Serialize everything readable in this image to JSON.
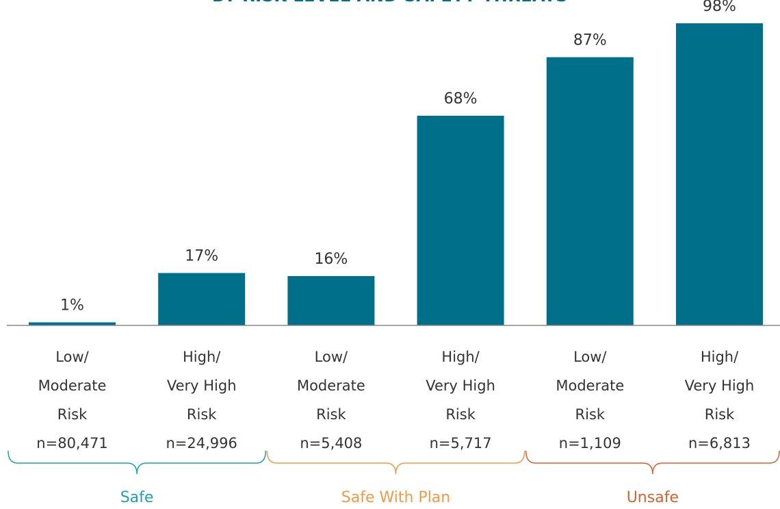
{
  "chart_data": {
    "type": "bar",
    "title": "BY RISK LEVEL AND SAFETY THREATS",
    "ylim": [
      0,
      100
    ],
    "value_suffix": "%",
    "categories": [
      {
        "label": [
          "Low/",
          "Moderate",
          "Risk"
        ],
        "n": "n=80,471"
      },
      {
        "label": [
          "High/",
          "Very High",
          "Risk"
        ],
        "n": "n=24,996"
      },
      {
        "label": [
          "Low/",
          "Moderate",
          "Risk"
        ],
        "n": "n=5,408"
      },
      {
        "label": [
          "High/",
          "Very High",
          "Risk"
        ],
        "n": "n=5,717"
      },
      {
        "label": [
          "Low/",
          "Moderate",
          "Risk"
        ],
        "n": "n=1,109"
      },
      {
        "label": [
          "High/",
          "Very High",
          "Risk"
        ],
        "n": "n=6,813"
      }
    ],
    "values": [
      1,
      17,
      16,
      68,
      87,
      98
    ],
    "data_labels": [
      "1%",
      "17%",
      "16%",
      "68%",
      "87%",
      "98%"
    ],
    "bar_color": "#00708a",
    "groups": [
      {
        "name": "Safe",
        "color": "#1a9fc0",
        "categories": [
          0,
          1
        ]
      },
      {
        "name": "Safe With Plan",
        "color": "#f39a45",
        "categories": [
          2,
          3
        ]
      },
      {
        "name": "Unsafe",
        "color": "#d9622b",
        "categories": [
          4,
          5
        ]
      }
    ]
  }
}
